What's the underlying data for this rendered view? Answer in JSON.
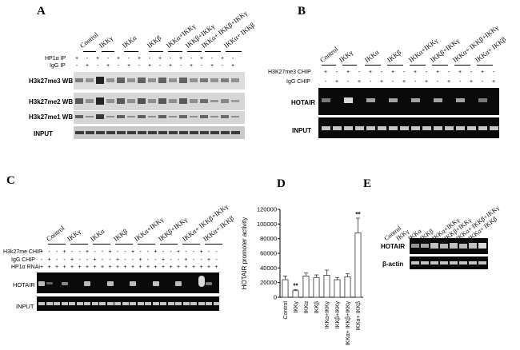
{
  "lane_labels": [
    "Control",
    "IKKγ",
    "IKKα",
    "IKKβ",
    "IKKα+IKKγ",
    "IKKβ+IKKγ",
    "IKKα+ IKKβ+IKKγ",
    "IKKα+ IKKβ"
  ],
  "panel_a": {
    "letter": "A",
    "ip_rows": [
      "HP1α IP",
      "IgG IP"
    ],
    "blot_rows": [
      "H3k27me3 WB",
      "H3k27me2 WB",
      "H3k27me1 WB",
      "INPUT"
    ]
  },
  "panel_b": {
    "letter": "B",
    "chip_rows": [
      "H3K27me3 CHIP",
      "IgG CHIP"
    ],
    "gel_rows": [
      "HOTAIR",
      "INPUT"
    ]
  },
  "panel_c": {
    "letter": "C",
    "chip_rows": [
      "H3k27me CHIP",
      "IgG  CHIP",
      "HP1α RNAi"
    ],
    "gel_rows": [
      "HOTAIR",
      "INPUT"
    ]
  },
  "panel_d": {
    "letter": "D",
    "significance": "**"
  },
  "panel_e": {
    "letter": "E",
    "lane_labels": [
      "Control",
      "IKKγ",
      "IKKα",
      "IKKβ",
      "IKKα+IKKγ",
      "IKKβ+IKKγ",
      "IKKα+ IKKβ+IKKγ",
      "IKKα+ IKKβ"
    ],
    "gel_rows": [
      "HOTAIR",
      "β-actin"
    ]
  },
  "chart_data": {
    "type": "bar",
    "title": "",
    "xlabel": "",
    "ylabel": "HOTAIR promoter activity",
    "ylim": [
      0,
      120000
    ],
    "yticks": [
      "0",
      "20000",
      "40000",
      "60000",
      "80000",
      "100000",
      "120000"
    ],
    "categories": [
      "Control",
      "IKKγ",
      "IKKα",
      "IKKβ",
      "IKKα+IKKγ",
      "IKKβ+IKKγ",
      "IKKα+ IKKβ+IKKγ",
      "IKKα+ IKKβ"
    ],
    "values": [
      24000,
      9000,
      29000,
      27000,
      30000,
      24000,
      28000,
      88000
    ],
    "errors": [
      5000,
      1500,
      4000,
      3500,
      7000,
      3000,
      4000,
      20000
    ],
    "significant": [
      false,
      true,
      false,
      false,
      false,
      false,
      false,
      true
    ],
    "grid": false,
    "legend": "none"
  }
}
